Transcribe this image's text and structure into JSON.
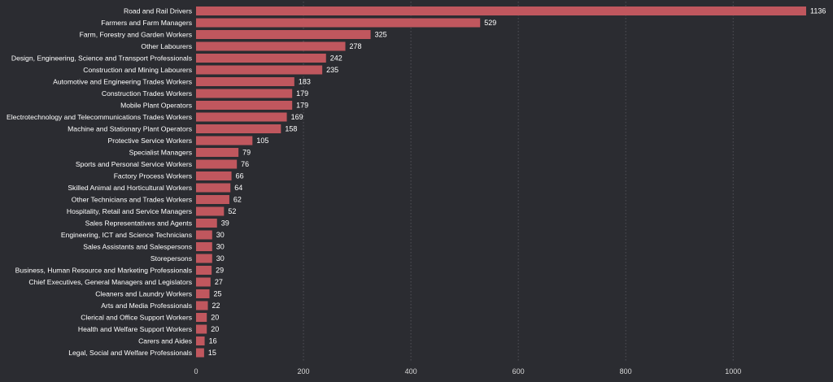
{
  "chart_data": {
    "type": "bar",
    "orientation": "horizontal",
    "bar_color": "#c0575e",
    "background": "#2b2c31",
    "grid": true,
    "xlim": [
      0,
      1136
    ],
    "xticks": [
      0,
      200,
      400,
      600,
      800,
      1000
    ],
    "categories": [
      "Road and Rail Drivers",
      "Farmers and Farm Managers",
      "Farm, Forestry and Garden Workers",
      "Other Labourers",
      "Design, Engineering, Science and Transport Professionals",
      "Construction and Mining Labourers",
      "Automotive and Engineering Trades Workers",
      "Construction Trades Workers",
      "Mobile Plant Operators",
      "Electrotechnology and Telecommunications Trades Workers",
      "Machine and Stationary Plant Operators",
      "Protective Service Workers",
      "Specialist Managers",
      "Sports and Personal Service Workers",
      "Factory Process Workers",
      "Skilled Animal and Horticultural Workers",
      "Other Technicians and Trades Workers",
      "Hospitality, Retail and Service Managers",
      "Sales Representatives and Agents",
      "Engineering, ICT and Science Technicians",
      "Sales Assistants and Salespersons",
      "Storepersons",
      "Business, Human Resource and Marketing Professionals",
      "Chief Executives, General Managers and Legislators",
      "Cleaners and Laundry Workers",
      "Arts and Media Professionals",
      "Clerical and Office Support Workers",
      "Health and Welfare Support Workers",
      "Carers and Aides",
      "Legal, Social and Welfare Professionals"
    ],
    "values": [
      1136,
      529,
      325,
      278,
      242,
      235,
      183,
      179,
      179,
      169,
      158,
      105,
      79,
      76,
      66,
      64,
      62,
      52,
      39,
      30,
      30,
      30,
      29,
      27,
      25,
      22,
      20,
      20,
      16,
      15
    ]
  }
}
